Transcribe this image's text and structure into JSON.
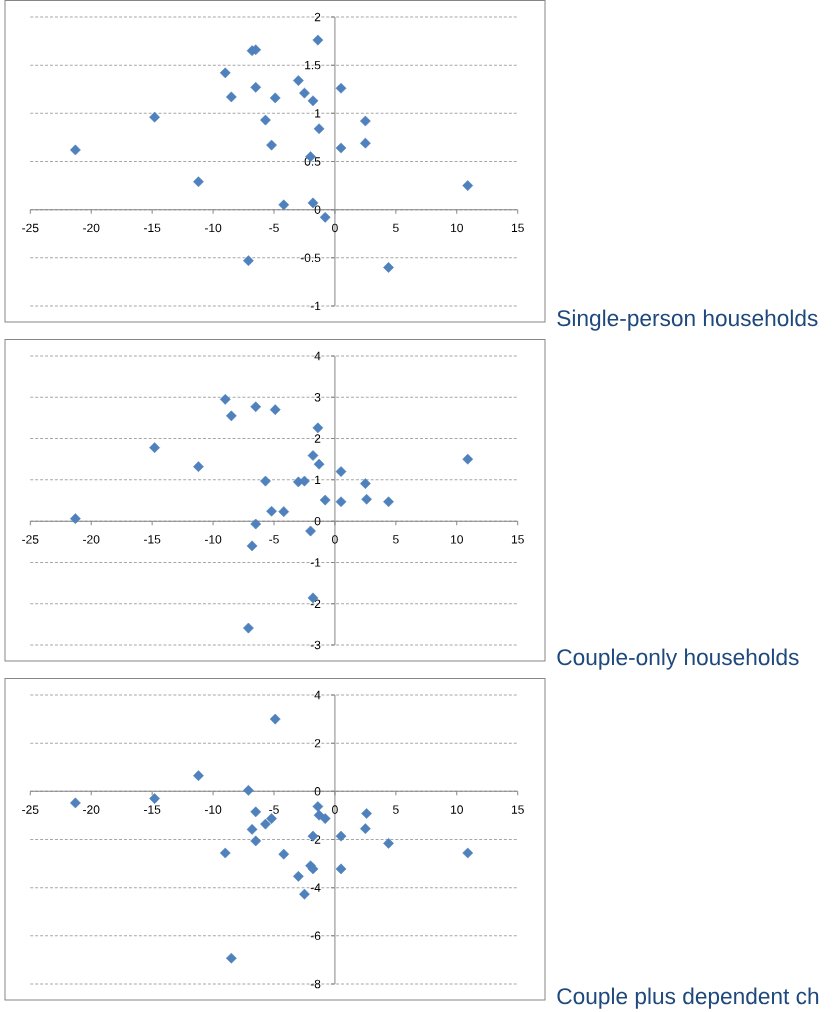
{
  "chart_data": [
    {
      "type": "scatter",
      "annotations": [
        "Single-person households"
      ],
      "color": "#4f81bd",
      "marker": "diamond",
      "grid": "y",
      "x": [
        -21.3,
        -14.8,
        -11.2,
        -9.0,
        -8.5,
        -7.1,
        -6.8,
        -6.5,
        -6.5,
        -5.7,
        -5.2,
        -4.9,
        -4.2,
        -3.0,
        -2.5,
        -1.8,
        -2.0,
        -1.8,
        -1.4,
        -1.3,
        -0.8,
        0.5,
        0.5,
        2.5,
        2.5,
        4.4,
        10.9
      ],
      "values": [
        0.62,
        0.96,
        0.29,
        1.42,
        1.17,
        -0.53,
        1.65,
        1.66,
        1.27,
        0.93,
        0.67,
        1.16,
        0.05,
        1.34,
        1.21,
        1.13,
        0.55,
        0.07,
        1.76,
        0.84,
        -0.08,
        1.26,
        0.64,
        0.92,
        0.69,
        -0.6,
        0.25
      ],
      "xlim": [
        -25,
        15
      ],
      "xticks": [
        -25,
        -20,
        -15,
        -10,
        -5,
        0,
        5,
        10,
        15
      ],
      "ylim": [
        -1,
        2
      ],
      "yticks": [
        -1,
        -0.5,
        0,
        0.5,
        1,
        1.5,
        2
      ]
    },
    {
      "type": "scatter",
      "annotations": [
        "Couple-only households"
      ],
      "color": "#4f81bd",
      "marker": "diamond",
      "grid": "y",
      "x": [
        -21.3,
        -14.8,
        -11.2,
        -9.0,
        -8.5,
        -7.1,
        -6.8,
        -6.5,
        -6.5,
        -5.7,
        -5.2,
        -4.9,
        -4.2,
        -3.0,
        -2.5,
        -1.8,
        -2.0,
        -1.8,
        -1.4,
        -1.3,
        -0.8,
        0.5,
        0.5,
        2.5,
        2.6,
        4.4,
        10.9
      ],
      "values": [
        0.06,
        1.78,
        1.32,
        2.95,
        2.55,
        -2.59,
        -0.6,
        2.77,
        -0.07,
        0.97,
        0.24,
        2.7,
        0.23,
        0.95,
        0.97,
        1.59,
        -0.24,
        -1.86,
        2.26,
        1.38,
        0.51,
        1.2,
        0.47,
        0.91,
        0.53,
        0.47,
        1.5
      ],
      "xlim": [
        -25,
        15
      ],
      "xticks": [
        -25,
        -20,
        -15,
        -10,
        -5,
        0,
        5,
        10,
        15
      ],
      "ylim": [
        -3,
        4
      ],
      "yticks": [
        -3,
        -2,
        -1,
        0,
        1,
        2,
        3,
        4
      ]
    },
    {
      "type": "scatter",
      "annotations": [
        "Couple plus dependent ch"
      ],
      "color": "#4f81bd",
      "marker": "diamond",
      "grid": "y",
      "x": [
        -21.3,
        -14.8,
        -11.2,
        -9.0,
        -8.5,
        -7.1,
        -6.8,
        -6.5,
        -6.5,
        -5.7,
        -5.2,
        -4.9,
        -4.2,
        -3.0,
        -2.5,
        -1.8,
        -2.0,
        -1.8,
        -1.4,
        -1.3,
        -0.8,
        0.5,
        0.5,
        2.6,
        2.5,
        4.4,
        10.9
      ],
      "values": [
        -0.48,
        -0.3,
        0.65,
        -2.56,
        -6.93,
        0.04,
        -1.58,
        -2.06,
        -0.85,
        -1.36,
        -1.13,
        3.0,
        -2.61,
        -3.53,
        -4.27,
        -1.86,
        -3.09,
        -3.22,
        -0.63,
        -0.99,
        -1.13,
        -1.86,
        -3.22,
        -0.92,
        -1.55,
        -2.16,
        -2.56
      ],
      "xlim": [
        -25,
        15
      ],
      "xticks": [
        -25,
        -20,
        -15,
        -10,
        -5,
        0,
        5,
        10,
        15
      ],
      "ylim": [
        -8,
        4
      ],
      "yticks": [
        -8,
        -6,
        -4,
        -2,
        0,
        2,
        4
      ]
    }
  ]
}
